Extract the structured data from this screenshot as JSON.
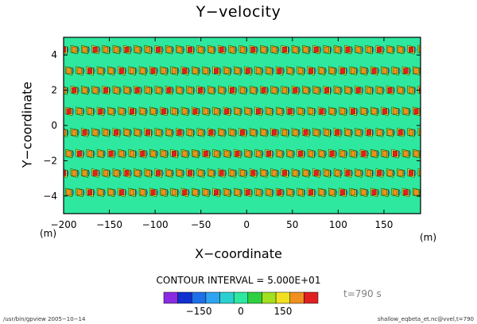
{
  "chart_data": {
    "type": "heatmap",
    "title": "Y−velocity",
    "xlabel": "X−coordinate",
    "ylabel": "Y−coordinate",
    "x_unit": "(m)",
    "y_unit": "(m)",
    "xlim": [
      -200,
      190
    ],
    "ylim": [
      -5,
      5
    ],
    "x_ticks": [
      -200,
      -150,
      -100,
      -50,
      0,
      50,
      100,
      150
    ],
    "y_ticks": [
      -4,
      -2,
      0,
      2,
      4
    ],
    "contour_interval_text": "CONTOUR INTERVAL = 5.000E+01",
    "colorbar": {
      "levels": [
        -250,
        -200,
        -150,
        -100,
        -50,
        0,
        50,
        100,
        150,
        200,
        250
      ],
      "colors": [
        "#8a2be2",
        "#1030d0",
        "#1e6fe8",
        "#2ea4f0",
        "#2ad0d0",
        "#2ee8a0",
        "#30d040",
        "#a0e020",
        "#f0e020",
        "#f09020",
        "#e02020"
      ],
      "tick_labels": [
        "−150",
        "0",
        "150"
      ],
      "tick_values": [
        -150,
        0,
        150
      ]
    },
    "pattern": {
      "background_level": 0,
      "row_centers_y": [
        4.3,
        3.1,
        2.0,
        0.8,
        -0.4,
        -1.6,
        -2.7,
        -3.8
      ]
    },
    "time_label": "t=790 s"
  },
  "footer": {
    "left": "/usr/bin/gpview  2005−10−14",
    "right": "shallow_eqbeta_et.nc@vvel,t=790"
  }
}
